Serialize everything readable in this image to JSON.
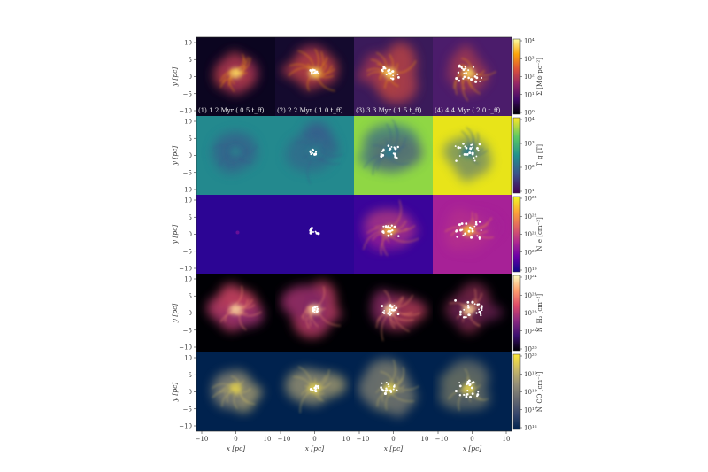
{
  "panel_captions": [
    "(1) 1.2 Myr ( 0.5 t_ff)",
    "(2) 2.2 Myr ( 1.0 t_ff)",
    "(3) 3.3 Myr ( 1.5 t_ff)",
    "(4) 4.4 Myr ( 2.0 t_ff)"
  ],
  "axes": {
    "y_label": "y [pc]",
    "x_label": "x [pc]",
    "y_ticks": [
      "10",
      "5",
      "0",
      "−5",
      "−10"
    ],
    "x_ticks_first": [
      "−10",
      "0",
      "10"
    ],
    "x_ticks_mid": [
      "−10",
      "0",
      "10"
    ],
    "x_tick_last": "10"
  },
  "rows": [
    {
      "quantity": "Σ [M⊙ pc⁻²]",
      "colormap": "inferno",
      "cb_ticks": [
        "10⁴",
        "10³",
        "10²",
        "10¹",
        "10⁰"
      ],
      "bg": [
        "#0b0520",
        "#140a2e",
        "#3a1a5a",
        "#4b1c6b"
      ]
    },
    {
      "quantity": "T_g [T]",
      "colormap": "viridis",
      "cb_ticks": [
        "10⁴",
        "10³",
        "10²",
        "10¹"
      ],
      "bg": [
        "#23898e",
        "#23898e",
        "#8fd744",
        "#e8e419"
      ]
    },
    {
      "quantity": "N_e [cm⁻²]",
      "colormap": "plasma",
      "cb_ticks": [
        "10²³",
        "10²²",
        "10²¹",
        "10²⁰",
        "10¹⁹"
      ],
      "bg": [
        "#2c0594",
        "#2c0594",
        "#3a049a",
        "#a72197"
      ]
    },
    {
      "quantity": "N_H₂ [cm⁻²]",
      "colormap": "magma",
      "cb_ticks": [
        "10²⁴",
        "10²³",
        "10²²",
        "10²¹",
        "10²⁰"
      ],
      "bg": [
        "#000004",
        "#000004",
        "#000004",
        "#000004"
      ]
    },
    {
      "quantity": "N_CO [cm⁻²]",
      "colormap": "cividis",
      "cb_ticks": [
        "10²⁰",
        "10¹⁹",
        "10¹⁸",
        "10¹⁷",
        "10¹⁶"
      ],
      "bg": [
        "#00224e",
        "#00224e",
        "#00224e",
        "#00224e"
      ]
    }
  ],
  "colormaps": {
    "inferno": [
      "#000004",
      "#420a68",
      "#932667",
      "#dd513a",
      "#fca50a",
      "#fcffa4"
    ],
    "viridis": [
      "#440154",
      "#3b528b",
      "#21918c",
      "#5ec962",
      "#fde725"
    ],
    "plasma": [
      "#0d0887",
      "#6a00a8",
      "#b12a90",
      "#e16462",
      "#fca636",
      "#f0f921"
    ],
    "magma": [
      "#000004",
      "#3b0f70",
      "#8c2981",
      "#de4968",
      "#fe9f6d",
      "#fcfdbf"
    ],
    "cividis": [
      "#00224e",
      "#35456c",
      "#666970",
      "#948e77",
      "#c8b866",
      "#fee838"
    ]
  }
}
